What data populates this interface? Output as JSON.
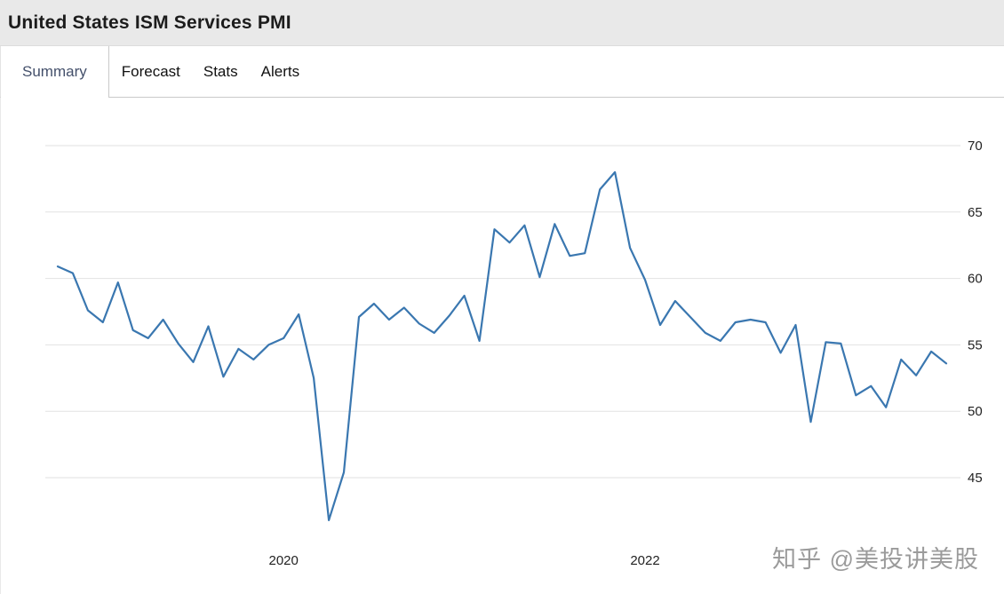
{
  "header": {
    "title": "United States ISM Services PMI"
  },
  "tabs": [
    {
      "label": "Summary",
      "active": true
    },
    {
      "label": "Forecast",
      "active": false
    },
    {
      "label": "Stats",
      "active": false
    },
    {
      "label": "Alerts",
      "active": false
    }
  ],
  "watermark": "知乎 @美投讲美股",
  "chart_data": {
    "type": "line",
    "title": "United States ISM Services PMI",
    "line_color": "#3a77b0",
    "grid_color": "#e2e2e2",
    "grid": "horizontal-only",
    "y_axis_position": "right",
    "y_ticks": [
      45,
      50,
      55,
      60,
      65,
      70
    ],
    "ylim": [
      41,
      71.5
    ],
    "x_tick_labels": [
      "2020",
      "2022"
    ],
    "x": [
      "2018-10",
      "2018-11",
      "2018-12",
      "2019-01",
      "2019-02",
      "2019-03",
      "2019-04",
      "2019-05",
      "2019-06",
      "2019-07",
      "2019-08",
      "2019-09",
      "2019-10",
      "2019-11",
      "2019-12",
      "2020-01",
      "2020-02",
      "2020-03",
      "2020-04",
      "2020-05",
      "2020-06",
      "2020-07",
      "2020-08",
      "2020-09",
      "2020-10",
      "2020-11",
      "2020-12",
      "2021-01",
      "2021-02",
      "2021-03",
      "2021-04",
      "2021-05",
      "2021-06",
      "2021-07",
      "2021-08",
      "2021-09",
      "2021-10",
      "2021-11",
      "2021-12",
      "2022-01",
      "2022-02",
      "2022-03",
      "2022-04",
      "2022-05",
      "2022-06",
      "2022-07",
      "2022-08",
      "2022-09",
      "2022-10",
      "2022-11",
      "2022-12",
      "2023-01",
      "2023-02",
      "2023-03",
      "2023-04",
      "2023-05",
      "2023-06",
      "2023-07",
      "2023-08",
      "2023-09"
    ],
    "series": [
      {
        "name": "ISM Services PMI",
        "values": [
          60.9,
          60.4,
          57.6,
          56.7,
          59.7,
          56.1,
          55.5,
          56.9,
          55.1,
          53.7,
          56.4,
          52.6,
          54.7,
          53.9,
          55.0,
          55.5,
          57.3,
          52.5,
          41.8,
          45.4,
          57.1,
          58.1,
          56.9,
          57.8,
          56.6,
          55.9,
          57.2,
          58.7,
          55.3,
          63.7,
          62.7,
          64.0,
          60.1,
          64.1,
          61.7,
          61.9,
          66.7,
          68.0,
          62.3,
          59.9,
          56.5,
          58.3,
          57.1,
          55.9,
          55.3,
          56.7,
          56.9,
          56.7,
          54.4,
          56.5,
          49.2,
          55.2,
          55.1,
          51.2,
          51.9,
          50.3,
          53.9,
          52.7,
          54.5,
          53.6
        ]
      }
    ]
  }
}
